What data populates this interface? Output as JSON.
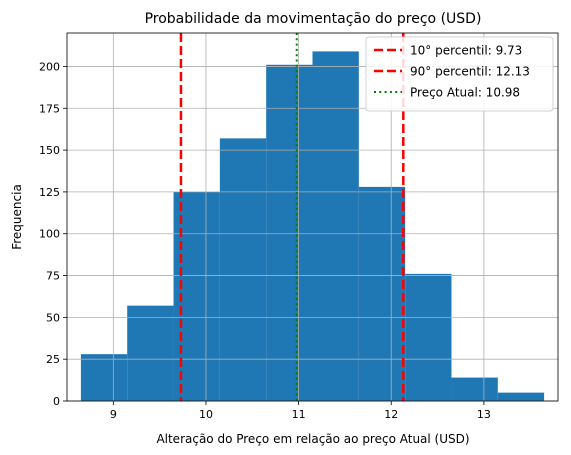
{
  "chart_data": {
    "type": "bar",
    "title": "Probabilidade da movimentação do preço (USD)",
    "xlabel": "Alteração do Preço em relação ao preço Atual (USD)",
    "ylabel": "Frequencia",
    "xlim": [
      8.5,
      13.8
    ],
    "ylim": [
      0,
      220
    ],
    "x_ticks": [
      9,
      10,
      11,
      12,
      13
    ],
    "y_ticks": [
      0,
      25,
      50,
      75,
      100,
      125,
      150,
      175,
      200
    ],
    "grid": true,
    "bar_color": "#1f77b4",
    "bin_edges": [
      8.65,
      9.15,
      9.65,
      10.15,
      10.65,
      11.15,
      11.65,
      12.15,
      12.65,
      13.15,
      13.65
    ],
    "values": [
      28,
      57,
      125,
      157,
      201,
      209,
      128,
      76,
      14,
      5
    ],
    "reference_lines": [
      {
        "label": "10° percentil: 9.73",
        "x": 9.73,
        "color": "#ff0000",
        "style": "dashed"
      },
      {
        "label": "90° percentil: 12.13",
        "x": 12.13,
        "color": "#ff0000",
        "style": "dashed"
      },
      {
        "label": "Preço Atual: 10.98",
        "x": 10.98,
        "color": "#008000",
        "style": "dotted"
      }
    ],
    "legend_position": "top-right"
  }
}
